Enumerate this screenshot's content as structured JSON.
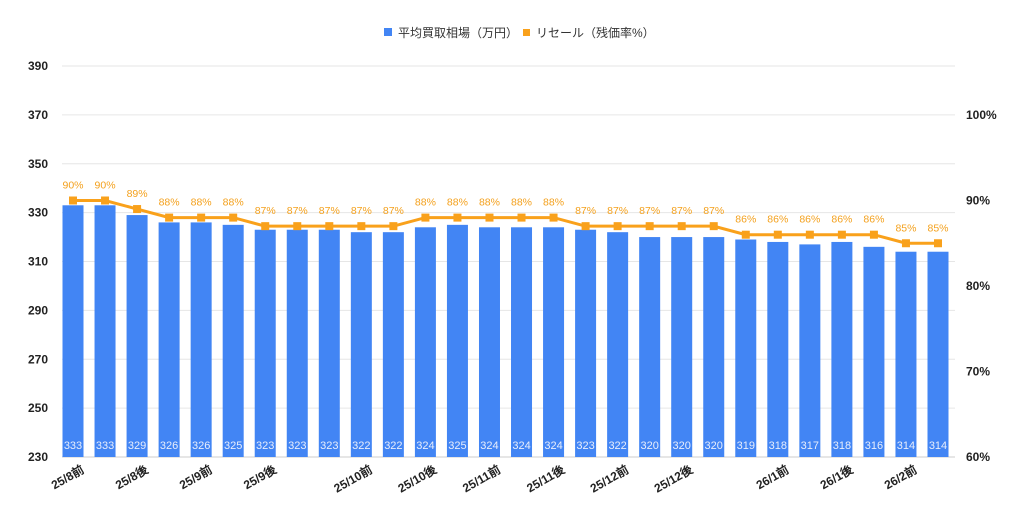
{
  "chart_data": {
    "type": "bar+line",
    "legend": {
      "position": "top"
    },
    "grid": true,
    "colors": {
      "bar": "#4285f4",
      "line": "#f9a11b"
    },
    "left_axis": {
      "ylim": [
        230,
        390
      ],
      "ticks": [
        230,
        250,
        270,
        290,
        310,
        330,
        350,
        370,
        390
      ]
    },
    "right_axis": {
      "ylim": [
        60,
        100
      ],
      "ticks": [
        "60%",
        "70%",
        "80%",
        "90%",
        "100%"
      ],
      "tick_values": [
        60,
        70,
        80,
        90,
        100
      ]
    },
    "x_ticks": [
      {
        "index": 0,
        "label": "25/8前"
      },
      {
        "index": 2,
        "label": "25/8後"
      },
      {
        "index": 4,
        "label": "25/9前"
      },
      {
        "index": 6,
        "label": "25/9後"
      },
      {
        "index": 9,
        "label": "25/10前"
      },
      {
        "index": 11,
        "label": "25/10後"
      },
      {
        "index": 13,
        "label": "25/11前"
      },
      {
        "index": 15,
        "label": "25/11後"
      },
      {
        "index": 17,
        "label": "25/12前"
      },
      {
        "index": 19,
        "label": "25/12後"
      },
      {
        "index": 22,
        "label": "26/1前"
      },
      {
        "index": 24,
        "label": "26/1後"
      },
      {
        "index": 26,
        "label": "26/2前"
      }
    ],
    "series": [
      {
        "name": "平均買取相場（万円）",
        "type": "bar",
        "axis": "left",
        "values": [
          333,
          333,
          329,
          326,
          326,
          325,
          323,
          323,
          323,
          322,
          322,
          324,
          325,
          324,
          324,
          324,
          323,
          322,
          320,
          320,
          320,
          319,
          318,
          317,
          318,
          316,
          314,
          314
        ]
      },
      {
        "name": "リセール（残価率%）",
        "type": "line",
        "axis": "right",
        "values": [
          90,
          90,
          89,
          88,
          88,
          88,
          87,
          87,
          87,
          87,
          87,
          88,
          88,
          88,
          88,
          88,
          87,
          87,
          87,
          87,
          87,
          86,
          86,
          86,
          86,
          86,
          85,
          85
        ]
      }
    ]
  }
}
